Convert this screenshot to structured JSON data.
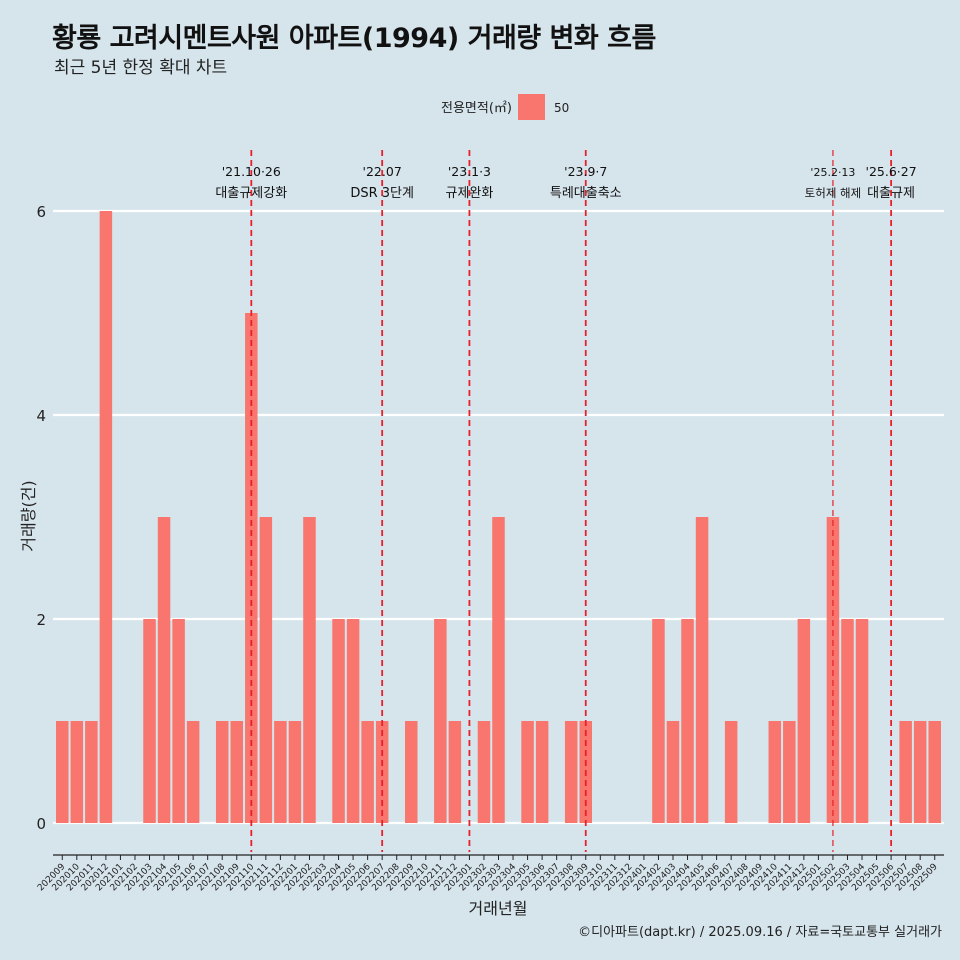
{
  "chart_data": {
    "type": "bar",
    "title": "황룡 고려시멘트사원 아파트(1994) 거래량 변화 흐름",
    "subtitle": "최근 5년 한정 확대 차트",
    "xlabel": "거래년월",
    "ylabel": "거래량(건)",
    "ylim": [
      -0.3,
      6.6
    ],
    "yticks": [
      0,
      2,
      4,
      6
    ],
    "grid": true,
    "legend": {
      "title": "전용면적(㎡)",
      "position": "top",
      "entries": [
        {
          "label": "50",
          "color": "#f8766d"
        }
      ]
    },
    "caption": "©디아파트(dapt.kr) / 2025.09.16 / 자료=국토교통부 실거래가",
    "categories": [
      "202009",
      "202010",
      "202011",
      "202012",
      "202101",
      "202102",
      "202103",
      "202104",
      "202105",
      "202106",
      "202107",
      "202108",
      "202109",
      "202110",
      "202111",
      "202112",
      "202201",
      "202202",
      "202203",
      "202204",
      "202205",
      "202206",
      "202207",
      "202208",
      "202209",
      "202210",
      "202211",
      "202212",
      "202301",
      "202302",
      "202303",
      "202304",
      "202305",
      "202306",
      "202307",
      "202308",
      "202309",
      "202310",
      "202311",
      "202312",
      "202401",
      "202402",
      "202403",
      "202404",
      "202405",
      "202406",
      "202407",
      "202408",
      "202409",
      "202410",
      "202411",
      "202412",
      "202501",
      "202502",
      "202503",
      "202504",
      "202505",
      "202506",
      "202507",
      "202508",
      "202509"
    ],
    "series": [
      {
        "name": "50",
        "color": "#f8766d",
        "values": [
          1,
          1,
          1,
          6,
          0,
          0,
          2,
          3,
          2,
          1,
          0,
          1,
          1,
          5,
          3,
          1,
          1,
          3,
          0,
          2,
          2,
          1,
          1,
          0,
          1,
          0,
          2,
          1,
          0,
          1,
          3,
          0,
          1,
          1,
          0,
          1,
          1,
          0,
          0,
          0,
          0,
          2,
          1,
          2,
          3,
          0,
          1,
          0,
          0,
          1,
          1,
          2,
          0,
          3,
          2,
          2,
          0,
          0,
          1,
          1,
          1
        ]
      }
    ],
    "annotations": [
      {
        "x": "202110",
        "date": "'21.10·26",
        "label": "대출규제강화",
        "style": "dashed"
      },
      {
        "x": "202207",
        "date": "'22.07",
        "label": "DSR 3단계",
        "style": "dashed"
      },
      {
        "x": "202301",
        "date": "'23.1·3",
        "label": "규제완화",
        "style": "dashed"
      },
      {
        "x": "202309",
        "date": "'23.9·7",
        "label": "특례대출축소",
        "style": "dashed"
      },
      {
        "x": "202502",
        "date": "'25.2·13",
        "label": "토허제 해제",
        "style": "dashed-thin"
      },
      {
        "x": "202506",
        "date": "'25.6·27",
        "label": "대출규제",
        "style": "dashed"
      }
    ]
  }
}
